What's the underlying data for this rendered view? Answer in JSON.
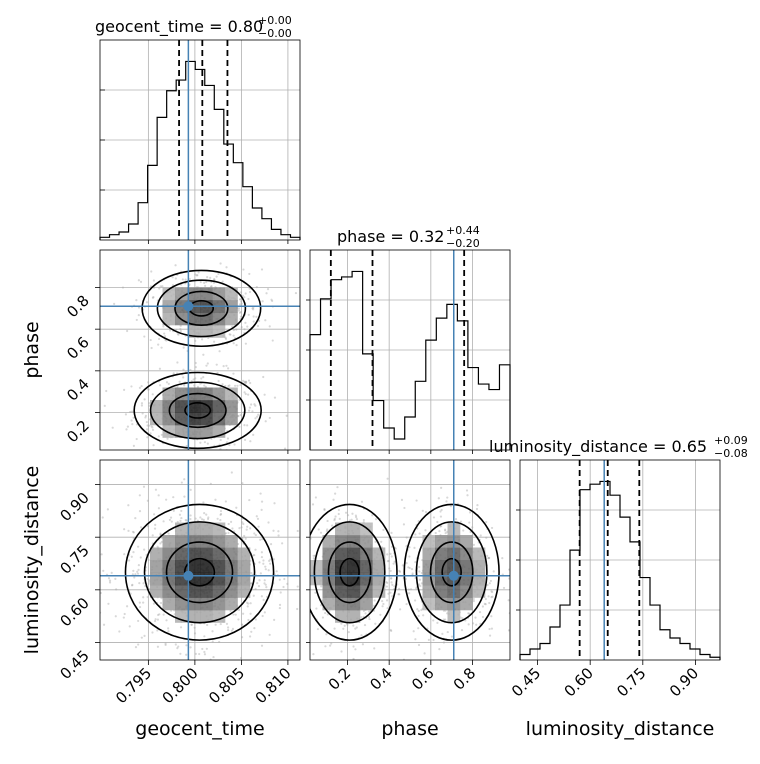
{
  "chart_data": {
    "type": "corner",
    "colors": {
      "truth": "#4682b4",
      "contour": "#000000",
      "density": "#404040",
      "grid": "#b0b0b0"
    },
    "parameters": [
      {
        "name": "geocent_time",
        "xlabel": "geocent_time",
        "title": {
          "main": "geocent_time = 0.80",
          "plus": "+0.00",
          "minus": "−0.00"
        },
        "range": [
          0.7898,
          0.8113
        ],
        "ticks": [
          0.795,
          0.8,
          0.805,
          0.81
        ],
        "tick_labels": [
          "0.795",
          "0.800",
          "0.805",
          "0.810"
        ],
        "truth": 0.7993,
        "quantiles": [
          0.7983,
          0.8008,
          0.8035
        ],
        "hist": [
          1,
          2,
          3,
          6,
          14,
          28,
          46,
          56,
          60,
          67,
          64,
          58,
          49,
          36,
          29,
          20,
          12,
          8,
          4,
          2,
          1
        ]
      },
      {
        "name": "phase",
        "xlabel": "phase",
        "ylabel": "phase",
        "title": {
          "main": "phase = 0.32",
          "plus": "+0.44",
          "minus": "−0.20"
        },
        "range": [
          0.02,
          0.98
        ],
        "ticks": [
          0.2,
          0.4,
          0.6,
          0.8
        ],
        "tick_labels": [
          "0.2",
          "0.4",
          "0.6",
          "0.8"
        ],
        "truth": 0.71,
        "quantiles": [
          0.12,
          0.32,
          0.76
        ],
        "hist": [
          42,
          55,
          62,
          63,
          65,
          35,
          18,
          8,
          4,
          12,
          25,
          40,
          48,
          53,
          47,
          30,
          24,
          22,
          31
        ]
      },
      {
        "name": "luminosity_distance",
        "xlabel": "luminosity_distance",
        "ylabel": "luminosity_distance",
        "title": {
          "main": "luminosity_distance = 0.65",
          "plus": "+0.09",
          "minus": "−0.08"
        },
        "range": [
          0.4,
          0.97
        ],
        "ticks": [
          0.45,
          0.6,
          0.75,
          0.9
        ],
        "tick_labels": [
          "0.45",
          "0.60",
          "0.75",
          "0.90"
        ],
        "truth": 0.64,
        "quantiles": [
          0.57,
          0.65,
          0.74
        ],
        "hist": [
          2,
          4,
          6,
          12,
          20,
          40,
          62,
          64,
          65,
          60,
          52,
          43,
          30,
          20,
          11,
          8,
          6,
          4,
          2,
          1
        ]
      }
    ],
    "panels_2d": [
      {
        "x": "geocent_time",
        "y": "phase",
        "clusters": [
          {
            "cx": 0.8003,
            "cy": 0.21,
            "sx": 0.003,
            "sy": 0.08,
            "w": 0.55
          },
          {
            "cx": 0.8007,
            "cy": 0.7,
            "sx": 0.0028,
            "sy": 0.08,
            "w": 0.45
          }
        ]
      },
      {
        "x": "geocent_time",
        "y": "luminosity_distance",
        "clusters": [
          {
            "cx": 0.8005,
            "cy": 0.65,
            "sx": 0.0035,
            "sy": 0.085,
            "w": 1.0
          }
        ]
      },
      {
        "x": "phase",
        "y": "luminosity_distance",
        "clusters": [
          {
            "cx": 0.21,
            "cy": 0.65,
            "sx": 0.1,
            "sy": 0.085,
            "w": 0.55
          },
          {
            "cx": 0.7,
            "cy": 0.65,
            "sx": 0.1,
            "sy": 0.085,
            "w": 0.45
          }
        ]
      }
    ]
  }
}
